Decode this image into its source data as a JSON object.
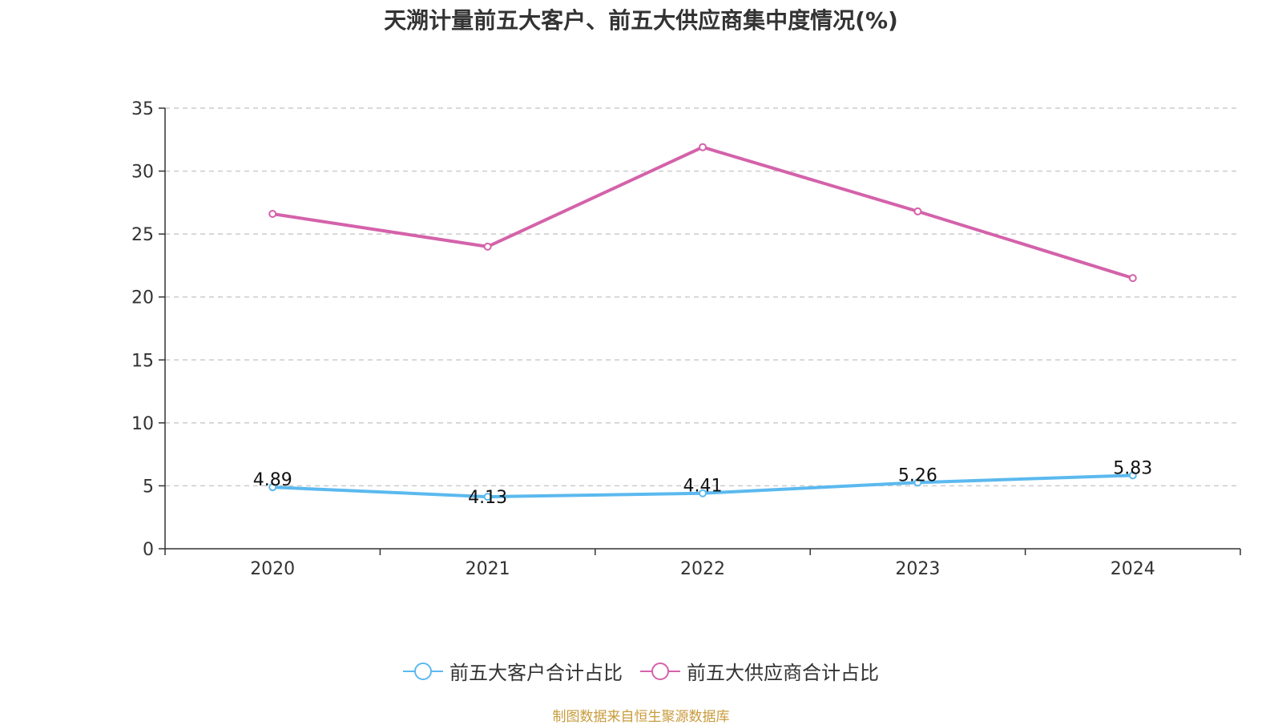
{
  "chart_data": {
    "type": "line",
    "title": "天溯计量前五大客户、前五大供应商集中度情况(%)",
    "categories": [
      "2020",
      "2021",
      "2022",
      "2023",
      "2024"
    ],
    "ylim": [
      0,
      35
    ],
    "yticks": [
      0,
      5,
      10,
      15,
      20,
      25,
      30,
      35
    ],
    "grid": true,
    "legend_position": "bottom",
    "series": [
      {
        "name": "前五大客户合计占比",
        "values": [
          4.89,
          4.13,
          4.41,
          5.26,
          5.83
        ],
        "color": "#5bb9ef",
        "show_labels": true
      },
      {
        "name": "前五大供应商合计占比",
        "values": [
          26.6,
          24.0,
          31.9,
          26.8,
          21.5
        ],
        "color": "#d462aa",
        "show_labels": false
      }
    ],
    "source": "制图数据来自恒生聚源数据库"
  }
}
